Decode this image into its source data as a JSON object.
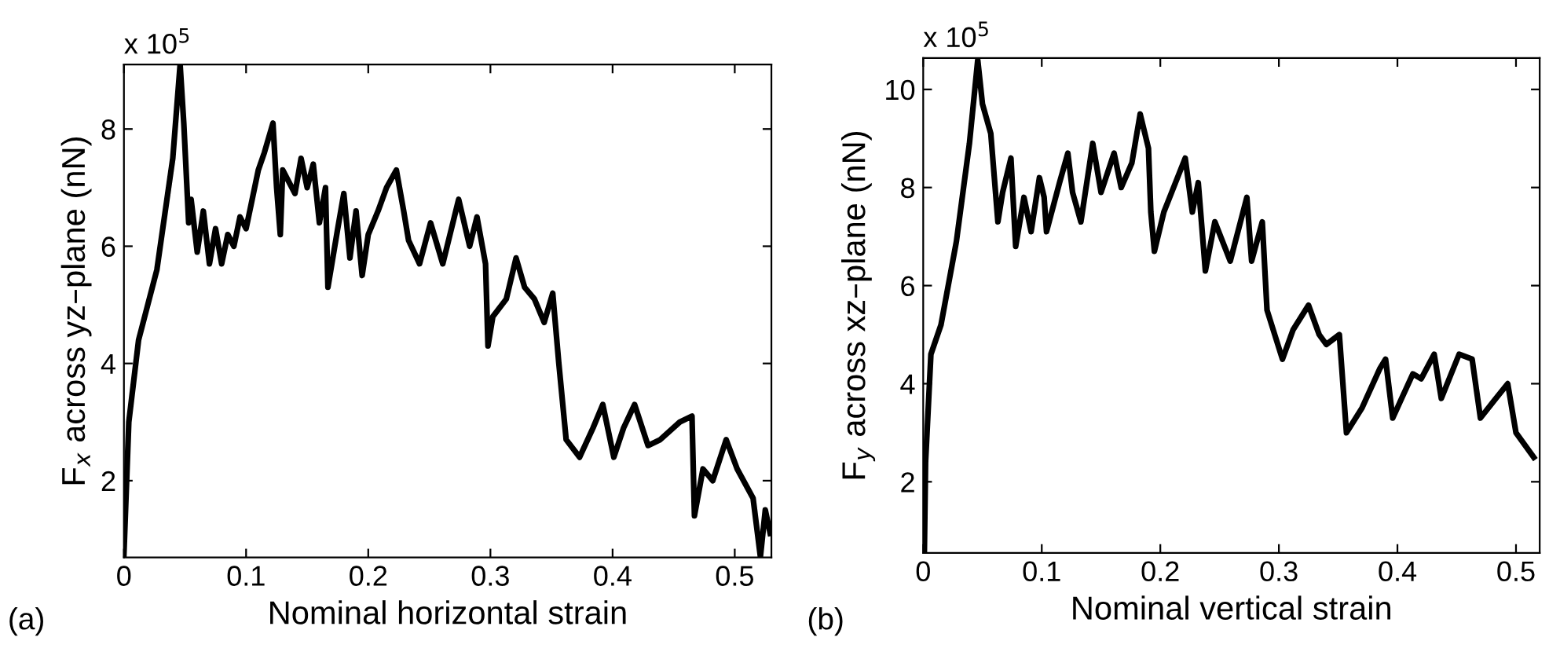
{
  "chart_data": [
    {
      "type": "line",
      "xlabel": "Nominal horizontal strain",
      "ylabel": "F$_{x}$ across yz–plane (nN)",
      "annotations": [
        "x 10$^{5}$",
        "(a)"
      ],
      "xlim": [
        0,
        0.53
      ],
      "ylim": [
        0.69,
        9.1
      ],
      "xticks": [
        0,
        0.1,
        0.2,
        0.3,
        0.4,
        0.5
      ],
      "yticks": [
        2,
        4,
        6,
        8
      ],
      "grid": false,
      "legend": false,
      "marker": "none",
      "line_style": "solid",
      "series": [
        {
          "color": "#000000",
          "x": [
            0,
            0.004,
            0.012,
            0.027,
            0.04,
            0.046,
            0.049,
            0.053,
            0.055,
            0.06,
            0.065,
            0.07,
            0.075,
            0.08,
            0.085,
            0.09,
            0.095,
            0.1,
            0.105,
            0.11,
            0.115,
            0.122,
            0.125,
            0.128,
            0.13,
            0.14,
            0.145,
            0.15,
            0.155,
            0.16,
            0.165,
            0.167,
            0.175,
            0.18,
            0.185,
            0.19,
            0.195,
            0.2,
            0.208,
            0.215,
            0.223,
            0.229,
            0.233,
            0.242,
            0.251,
            0.261,
            0.274,
            0.283,
            0.289,
            0.296,
            0.298,
            0.302,
            0.313,
            0.321,
            0.328,
            0.336,
            0.344,
            0.351,
            0.356,
            0.362,
            0.373,
            0.384,
            0.392,
            0.401,
            0.409,
            0.418,
            0.429,
            0.439,
            0.455,
            0.465,
            0.467,
            0.474,
            0.482,
            0.493,
            0.502,
            0.515,
            0.521,
            0.525,
            0.529
          ],
          "values": [
            0.74,
            3.0,
            4.4,
            5.6,
            7.5,
            9.1,
            8.1,
            6.4,
            6.8,
            5.9,
            6.6,
            5.7,
            6.3,
            5.7,
            6.2,
            6.0,
            6.5,
            6.3,
            6.8,
            7.3,
            7.6,
            8.1,
            7.0,
            6.2,
            7.3,
            6.9,
            7.5,
            7.0,
            7.4,
            6.4,
            7.0,
            5.3,
            6.3,
            6.9,
            5.8,
            6.6,
            5.5,
            6.2,
            6.6,
            7.0,
            7.3,
            6.6,
            6.1,
            5.7,
            6.4,
            5.7,
            6.8,
            6.0,
            6.5,
            5.7,
            4.3,
            4.8,
            5.1,
            5.8,
            5.3,
            5.1,
            4.7,
            5.2,
            4.0,
            2.7,
            2.4,
            2.9,
            3.3,
            2.4,
            2.9,
            3.3,
            2.6,
            2.7,
            3.0,
            3.1,
            1.4,
            2.2,
            2.0,
            2.7,
            2.2,
            1.7,
            0.7,
            1.5,
            1.1
          ]
        }
      ]
    },
    {
      "type": "line",
      "xlabel": "Nominal vertical strain",
      "ylabel": "F$_{y}$ across xz–plane (nN)",
      "annotations": [
        "x 10$^{5}$",
        "(b)"
      ],
      "xlim": [
        0,
        0.52
      ],
      "ylim": [
        0.55,
        10.64
      ],
      "xticks": [
        0,
        0.1,
        0.2,
        0.3,
        0.4,
        0.5
      ],
      "yticks": [
        2,
        4,
        6,
        8,
        10
      ],
      "grid": false,
      "legend": false,
      "marker": "none",
      "line_style": "solid",
      "series": [
        {
          "color": "#000000",
          "x": [
            0.001,
            0.002,
            0.0065,
            0.015,
            0.028,
            0.039,
            0.046,
            0.05,
            0.057,
            0.063,
            0.067,
            0.074,
            0.078,
            0.085,
            0.091,
            0.098,
            0.102,
            0.104,
            0.115,
            0.122,
            0.126,
            0.133,
            0.143,
            0.15,
            0.161,
            0.167,
            0.176,
            0.183,
            0.19,
            0.192,
            0.195,
            0.203,
            0.221,
            0.227,
            0.232,
            0.238,
            0.246,
            0.259,
            0.273,
            0.277,
            0.286,
            0.29,
            0.303,
            0.312,
            0.325,
            0.334,
            0.34,
            0.351,
            0.357,
            0.37,
            0.385,
            0.39,
            0.396,
            0.413,
            0.42,
            0.431,
            0.437,
            0.452,
            0.463,
            0.47,
            0.483,
            0.493,
            0.5,
            0.515
          ],
          "values": [
            0.6,
            2.4,
            4.6,
            5.2,
            6.9,
            8.9,
            10.6,
            9.7,
            9.1,
            7.3,
            7.9,
            8.6,
            6.8,
            7.8,
            7.1,
            8.2,
            7.8,
            7.1,
            8.1,
            8.7,
            7.9,
            7.3,
            8.9,
            7.9,
            8.7,
            8.0,
            8.5,
            9.5,
            8.8,
            7.5,
            6.7,
            7.5,
            8.6,
            7.5,
            8.1,
            6.3,
            7.3,
            6.5,
            7.8,
            6.5,
            7.3,
            5.5,
            4.5,
            5.1,
            5.6,
            5.0,
            4.8,
            5.0,
            3.0,
            3.5,
            4.3,
            4.5,
            3.3,
            4.2,
            4.1,
            4.6,
            3.7,
            4.6,
            4.5,
            3.3,
            3.7,
            4.0,
            3.0,
            2.5
          ]
        }
      ]
    }
  ]
}
